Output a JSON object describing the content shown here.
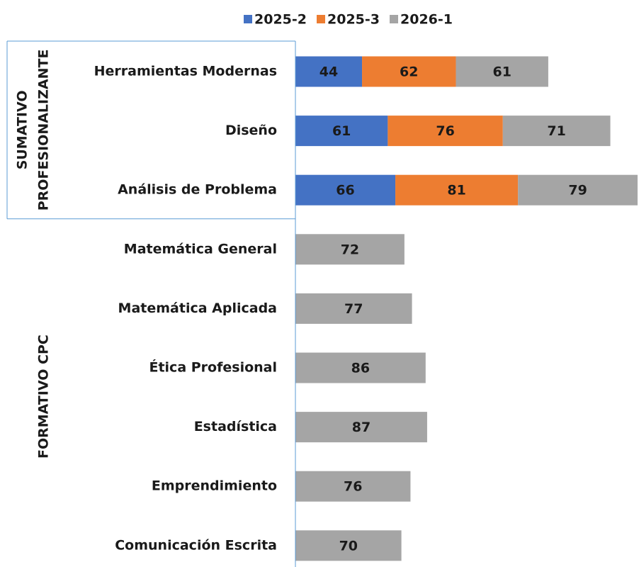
{
  "chart_data": {
    "type": "stacked-barh",
    "groups": [
      {
        "name_lines": [
          "SUMATIVO",
          "PROFESIONALIZANTE"
        ],
        "categories": [
          "Herramientas Modernas",
          "Diseño",
          "Análisis de Problema"
        ]
      },
      {
        "name_lines": [
          "FORMATIVO CPC"
        ],
        "categories": [
          "Matemática General",
          "Matemática Aplicada",
          "Ética Profesional",
          "Estadística",
          "Emprendimiento",
          "Comunicación Escrita"
        ]
      }
    ],
    "series": [
      {
        "name": "2025-2",
        "color": "#4472c4",
        "values": [
          44,
          61,
          66,
          null,
          null,
          null,
          null,
          null,
          null
        ]
      },
      {
        "name": "2025-3",
        "color": "#ed7d31",
        "values": [
          62,
          76,
          81,
          null,
          null,
          null,
          null,
          null,
          null
        ]
      },
      {
        "name": "2026-1",
        "color": "#a5a5a5",
        "values": [
          61,
          71,
          79,
          72,
          77,
          86,
          87,
          76,
          70
        ]
      }
    ],
    "legend": "top"
  }
}
